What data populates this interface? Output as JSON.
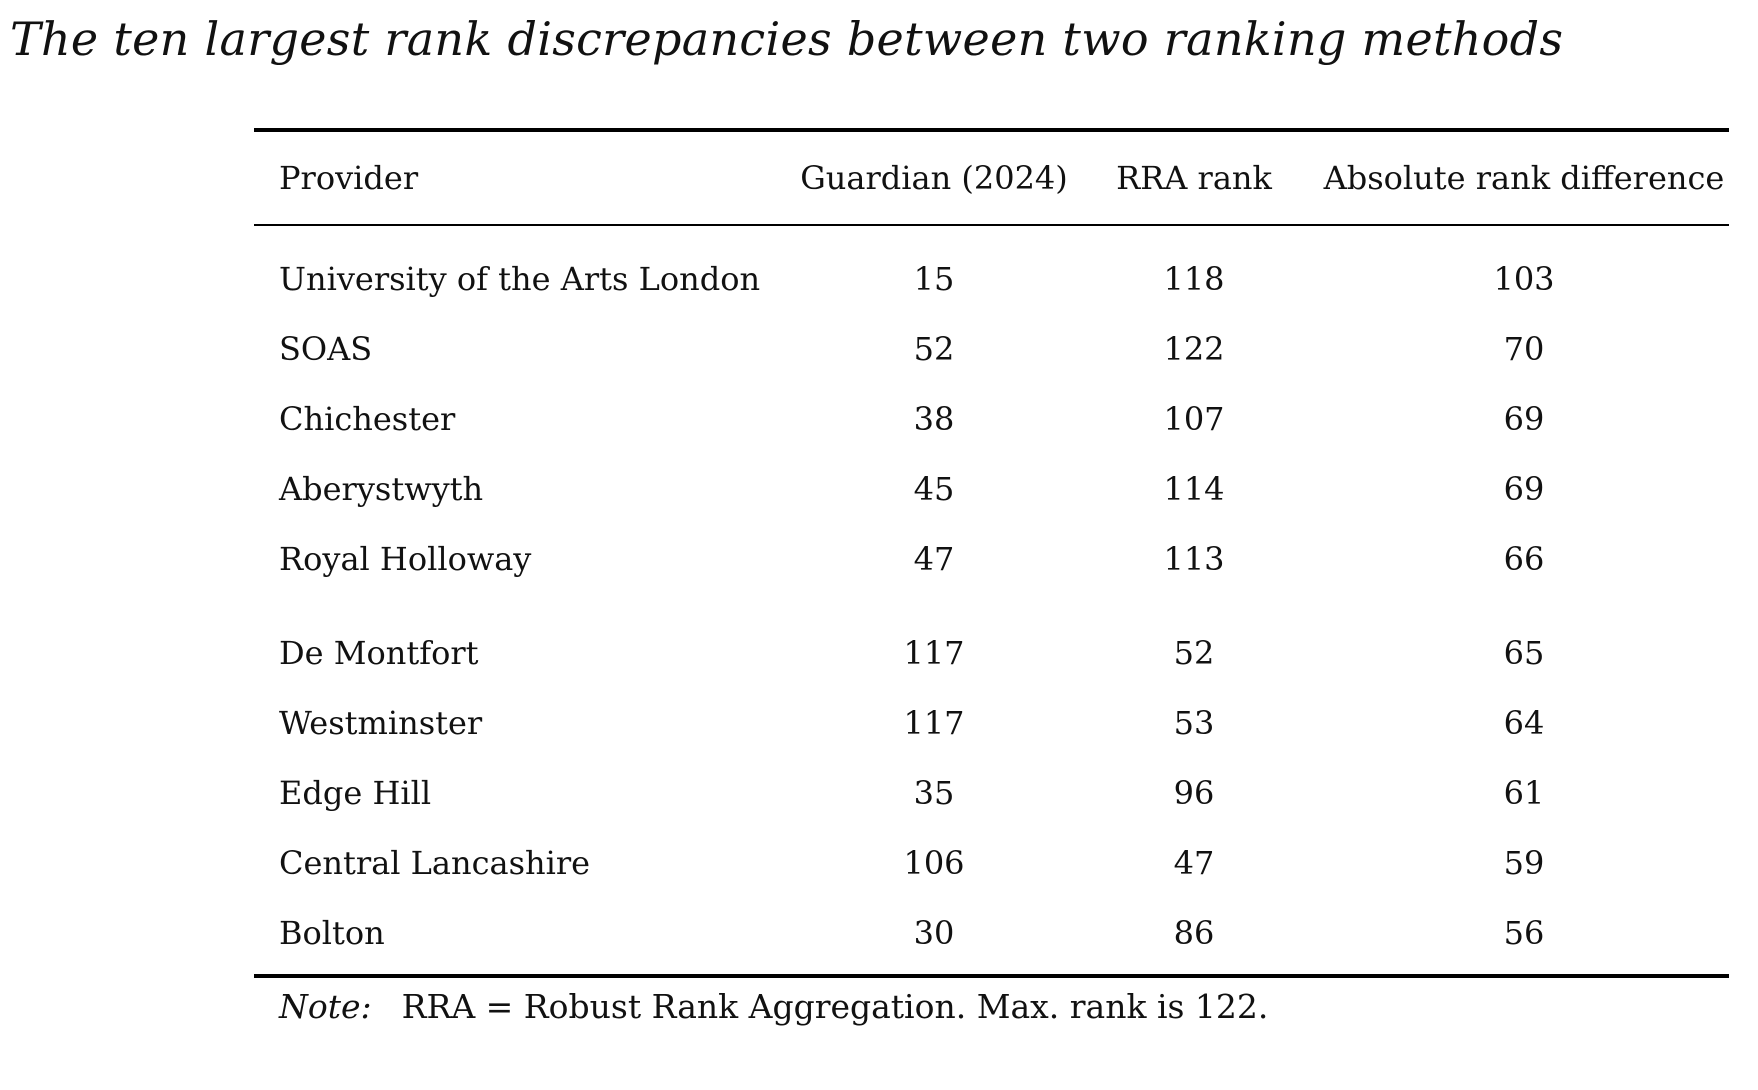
{
  "title": "The ten largest rank discrepancies between two ranking methods",
  "table": {
    "headers": {
      "provider": "Provider",
      "guardian": "Guardian (2024)",
      "rra": "RRA rank",
      "diff": "Absolute rank difference"
    },
    "group1": [
      {
        "provider": "University of the Arts London",
        "guardian": "15",
        "rra": "118",
        "diff": "103"
      },
      {
        "provider": "SOAS",
        "guardian": "52",
        "rra": "122",
        "diff": "70"
      },
      {
        "provider": "Chichester",
        "guardian": "38",
        "rra": "107",
        "diff": "69"
      },
      {
        "provider": "Aberystwyth",
        "guardian": "45",
        "rra": "114",
        "diff": "69"
      },
      {
        "provider": "Royal Holloway",
        "guardian": "47",
        "rra": "113",
        "diff": "66"
      }
    ],
    "group2": [
      {
        "provider": "De Montfort",
        "guardian": "117",
        "rra": "52",
        "diff": "65"
      },
      {
        "provider": "Westminster",
        "guardian": "117",
        "rra": "53",
        "diff": "64"
      },
      {
        "provider": "Edge Hill",
        "guardian": "35",
        "rra": "96",
        "diff": "61"
      },
      {
        "provider": "Central Lancashire",
        "guardian": "106",
        "rra": "47",
        "diff": "59"
      },
      {
        "provider": "Bolton",
        "guardian": "30",
        "rra": "86",
        "diff": "56"
      }
    ]
  },
  "note": {
    "label": "Note:",
    "text": "RRA = Robust Rank Aggregation. Max. rank is 122."
  }
}
